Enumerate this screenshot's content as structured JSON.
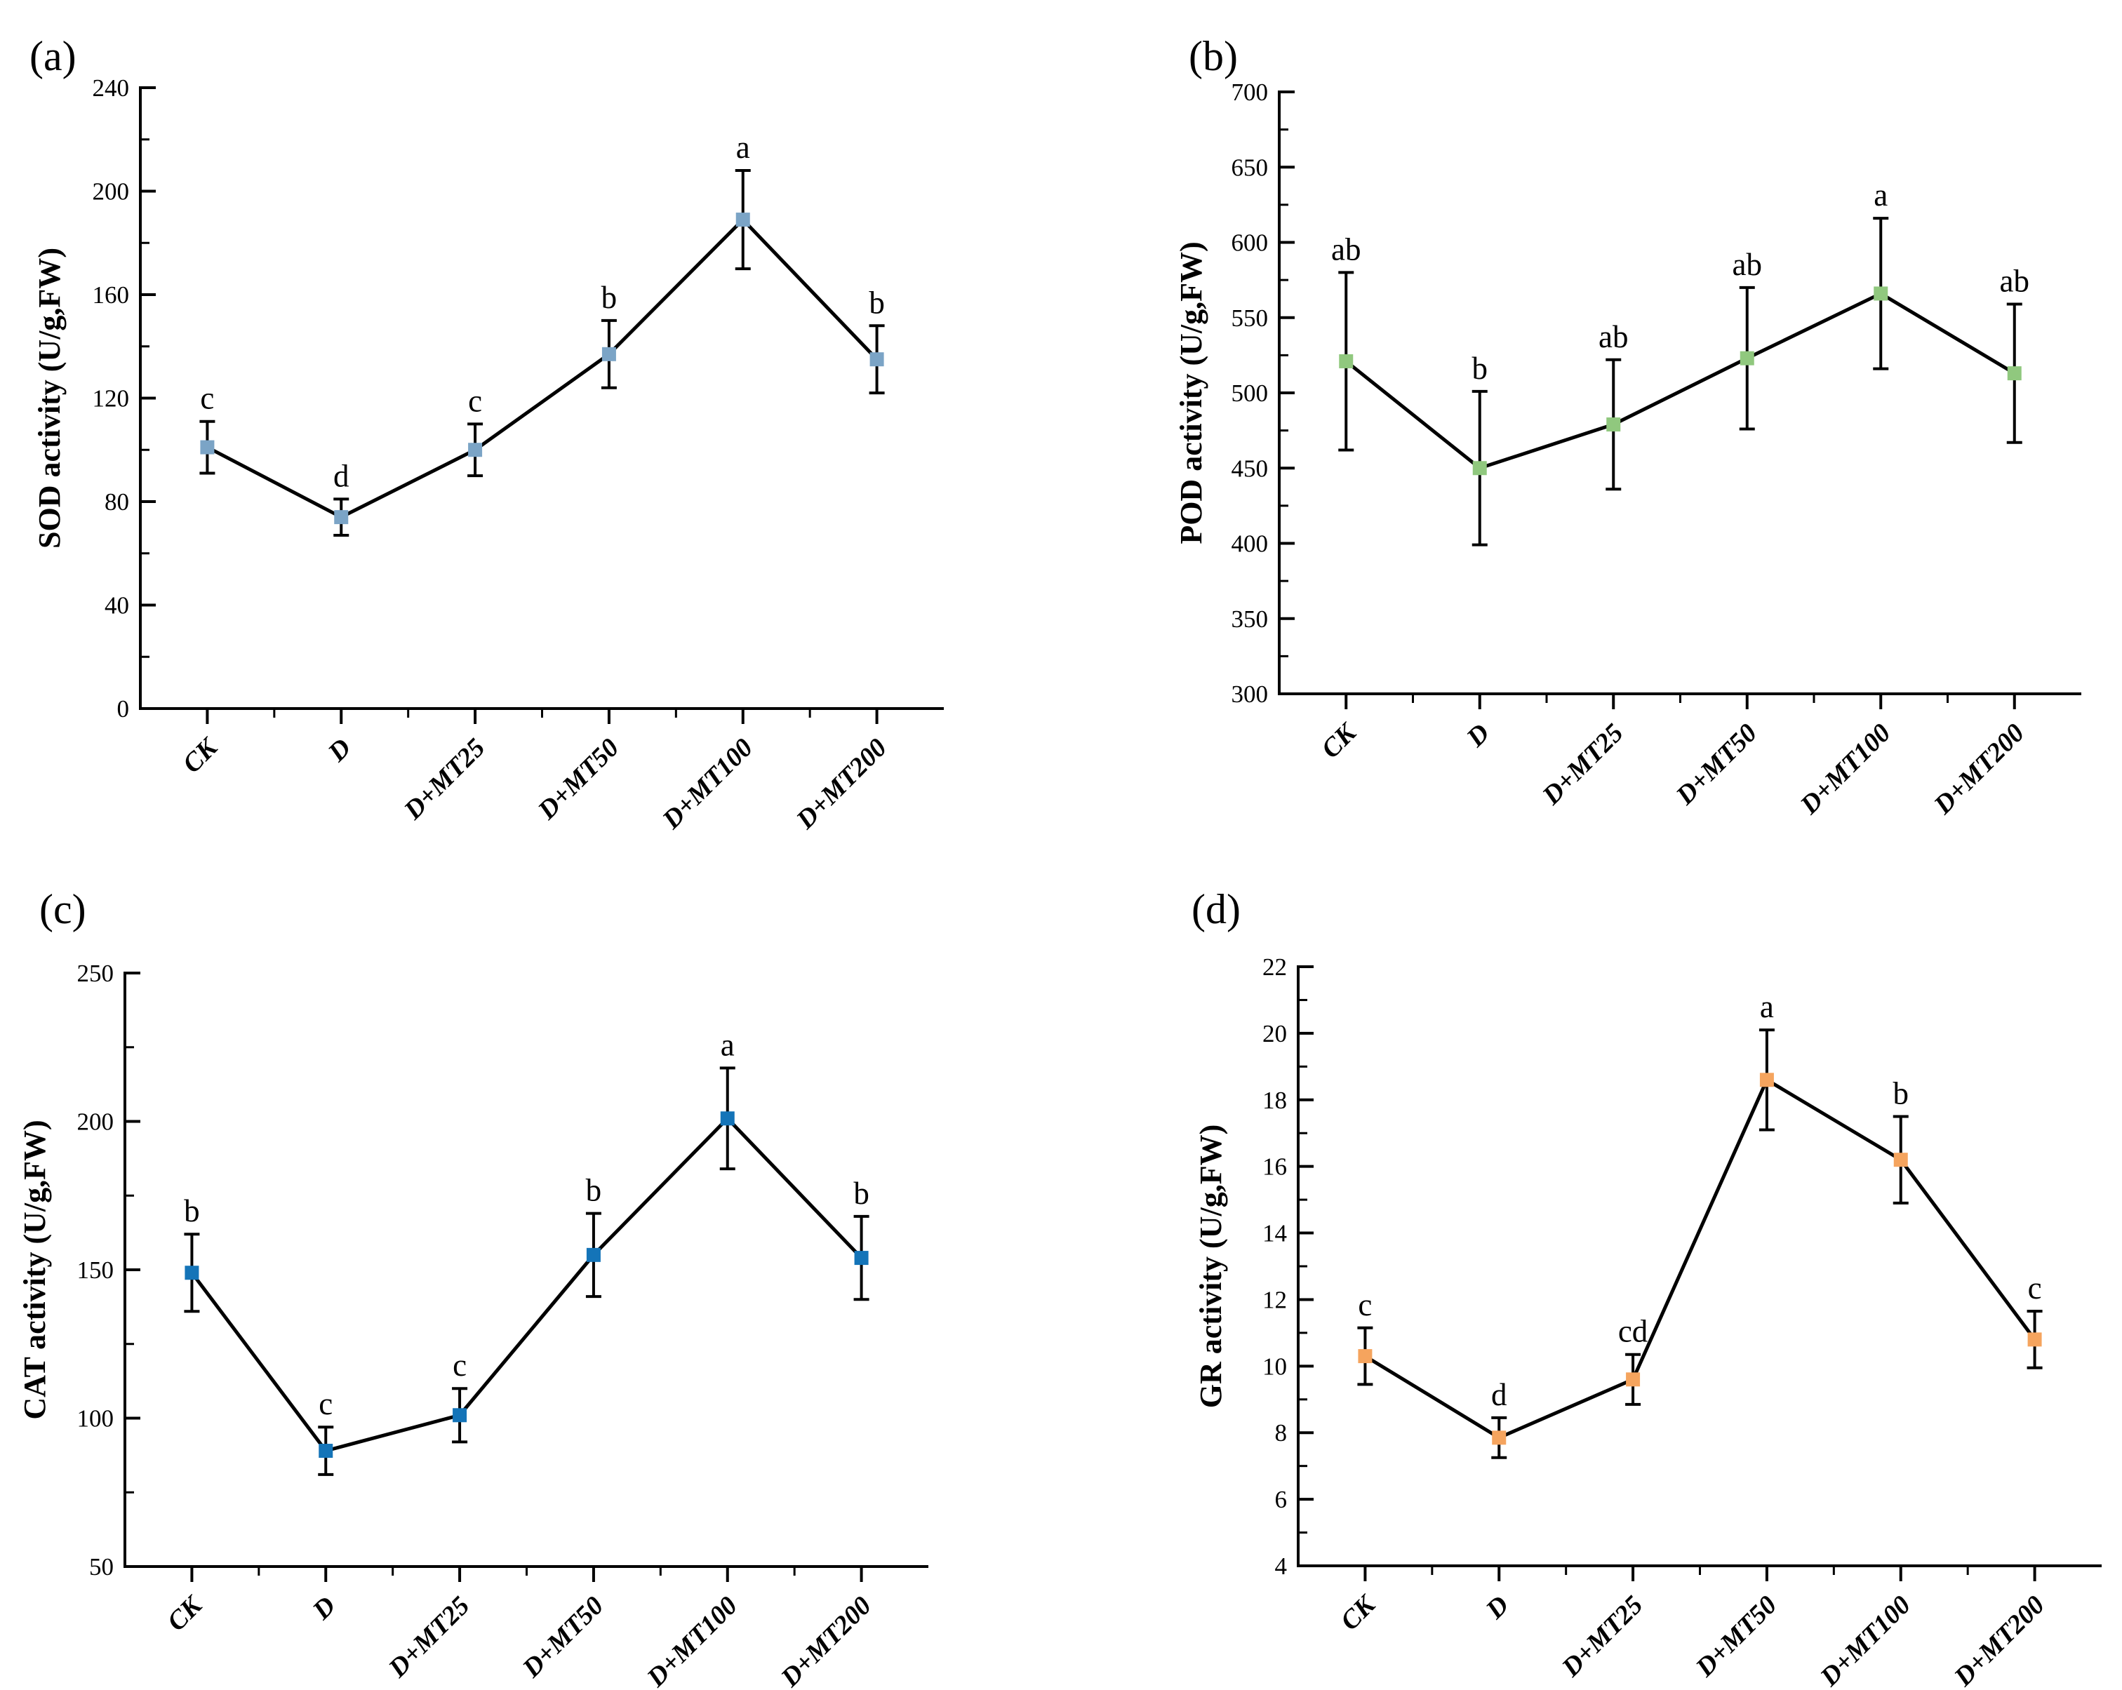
{
  "figure": {
    "background": "#ffffff",
    "panel_tags": [
      "(a)",
      "(b)",
      "(c)",
      "(d)"
    ],
    "categories": [
      "CK",
      "D",
      "D+MT25",
      "D+MT50",
      "D+MT100",
      "D+MT200"
    ]
  },
  "chart_data": [
    {
      "type": "line",
      "panel_tag": "(a)",
      "title": "",
      "xlabel": "",
      "ylabel": "SOD activity (U/g,FW)",
      "categories": [
        "CK",
        "D",
        "D+MT25",
        "D+MT50",
        "D+MT100",
        "D+MT200"
      ],
      "values": [
        101,
        74,
        100,
        137,
        189,
        135
      ],
      "errors": [
        10,
        7,
        10,
        13,
        19,
        13
      ],
      "sig_letters": [
        "c",
        "d",
        "c",
        "b",
        "a",
        "b"
      ],
      "ylim": [
        0,
        240
      ],
      "yticks": [
        0,
        40,
        80,
        120,
        160,
        200,
        240
      ],
      "ytick_minor_step": 20,
      "marker_color": "#7BA4C6",
      "line_color": "#000000",
      "grid": false,
      "legend": "none"
    },
    {
      "type": "line",
      "panel_tag": "(b)",
      "title": "",
      "xlabel": "",
      "ylabel": "POD activity (U/g,FW)",
      "categories": [
        "CK",
        "D",
        "D+MT25",
        "D+MT50",
        "D+MT100",
        "D+MT200"
      ],
      "values": [
        521,
        450,
        479,
        523,
        566,
        513
      ],
      "errors": [
        59,
        51,
        43,
        47,
        50,
        46
      ],
      "sig_letters": [
        "ab",
        "b",
        "ab",
        "ab",
        "a",
        "ab"
      ],
      "ylim": [
        300,
        700
      ],
      "yticks": [
        300,
        350,
        400,
        450,
        500,
        550,
        600,
        650,
        700
      ],
      "ytick_minor_step": 25,
      "marker_color": "#90C87E",
      "line_color": "#000000",
      "grid": false,
      "legend": "none"
    },
    {
      "type": "line",
      "panel_tag": "(c)",
      "title": "",
      "xlabel": "",
      "ylabel": "CAT activity (U/g,FW)",
      "categories": [
        "CK",
        "D",
        "D+MT25",
        "D+MT50",
        "D+MT100",
        "D+MT200"
      ],
      "values": [
        149,
        89,
        101,
        155,
        201,
        154
      ],
      "errors": [
        13,
        8,
        9,
        14,
        17,
        14
      ],
      "sig_letters": [
        "b",
        "c",
        "c",
        "b",
        "a",
        "b"
      ],
      "ylim": [
        50,
        250
      ],
      "yticks": [
        50,
        100,
        150,
        200,
        250
      ],
      "ytick_minor_step": 25,
      "marker_color": "#1474B8",
      "line_color": "#000000",
      "grid": false,
      "legend": "none"
    },
    {
      "type": "line",
      "panel_tag": "(d)",
      "title": "",
      "xlabel": "",
      "ylabel": "GR activity (U/g,FW)",
      "categories": [
        "CK",
        "D",
        "D+MT25",
        "D+MT50",
        "D+MT100",
        "D+MT200"
      ],
      "values": [
        10.3,
        7.85,
        9.6,
        18.6,
        16.2,
        10.8
      ],
      "errors": [
        0.85,
        0.6,
        0.75,
        1.5,
        1.3,
        0.85
      ],
      "sig_letters": [
        "c",
        "d",
        "cd",
        "a",
        "b",
        "c"
      ],
      "ylim": [
        4,
        22
      ],
      "yticks": [
        4,
        6,
        8,
        10,
        12,
        14,
        16,
        18,
        20,
        22
      ],
      "ytick_minor_step": 1,
      "marker_color": "#F5A45E",
      "line_color": "#000000",
      "grid": false,
      "legend": "none"
    }
  ]
}
